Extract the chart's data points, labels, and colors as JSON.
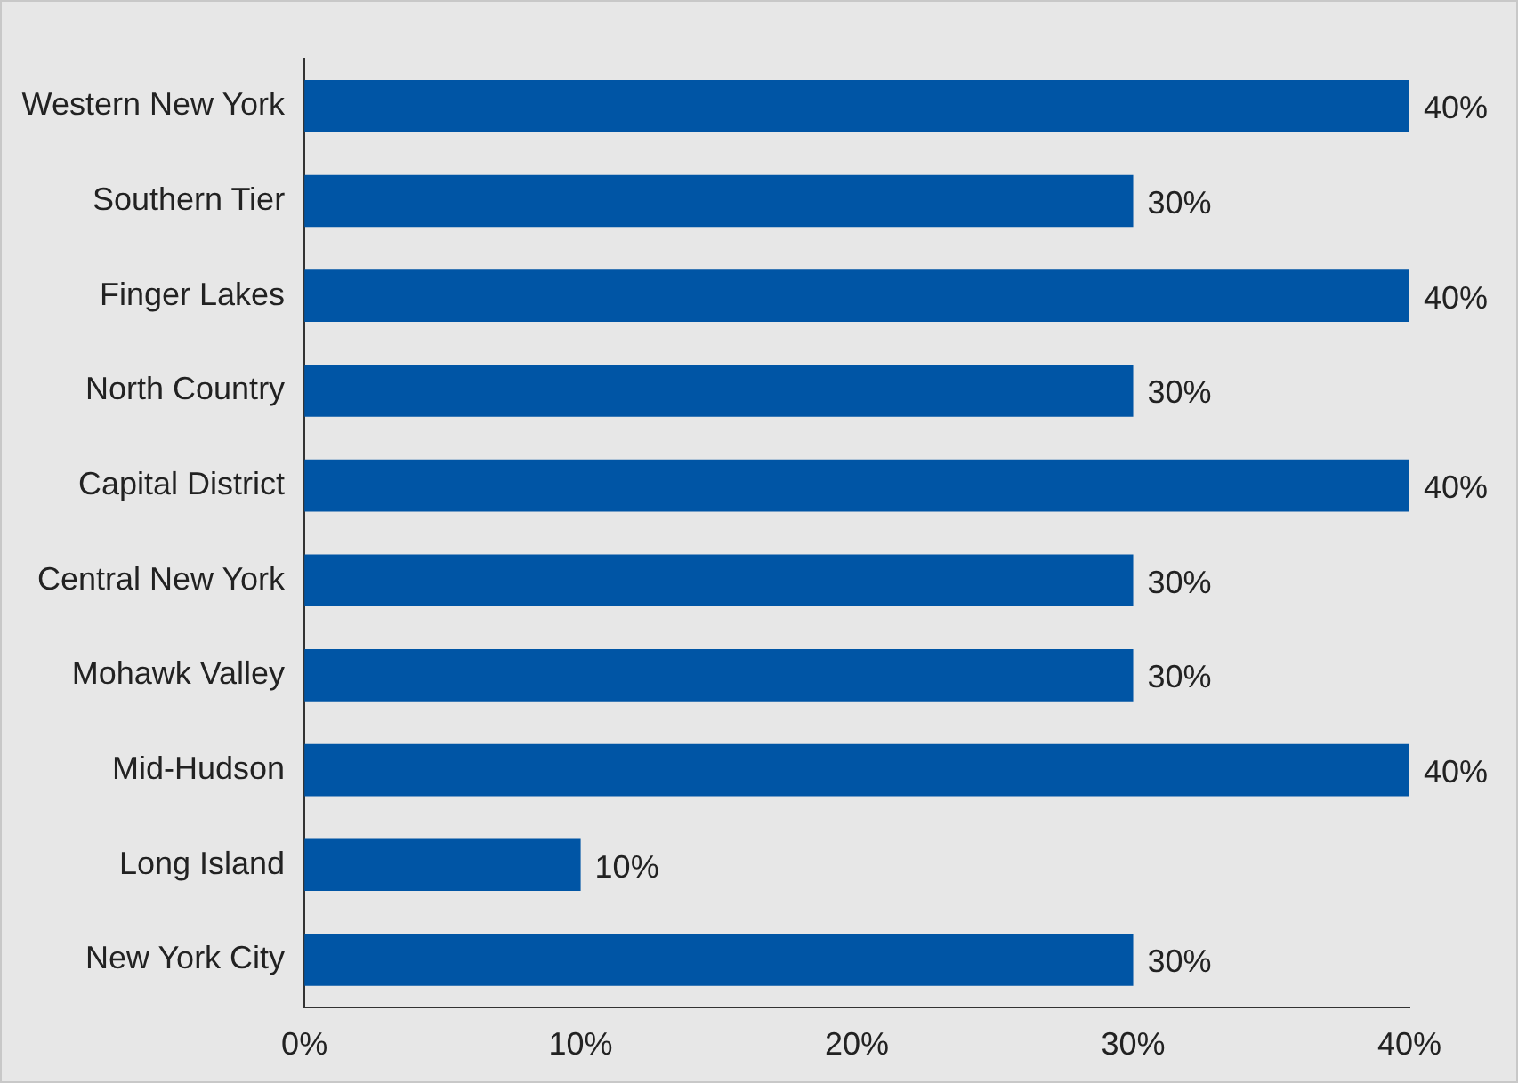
{
  "chart_data": {
    "type": "bar",
    "orientation": "horizontal",
    "categories": [
      "Western New York",
      "Southern Tier",
      "Finger Lakes",
      "North Country",
      "Capital District",
      "Central New York",
      "Mohawk Valley",
      "Mid-Hudson",
      "Long Island",
      "New York City"
    ],
    "values": [
      40,
      30,
      40,
      30,
      40,
      30,
      30,
      40,
      10,
      30
    ],
    "value_labels": [
      "40%",
      "30%",
      "40%",
      "30%",
      "40%",
      "30%",
      "30%",
      "40%",
      "10%",
      "30%"
    ],
    "color": "#0055a5",
    "xlim": [
      0,
      40
    ],
    "xticks": [
      {
        "value": 0,
        "label": "0%"
      },
      {
        "value": 10,
        "label": "10%"
      },
      {
        "value": 20,
        "label": "20%"
      },
      {
        "value": 30,
        "label": "30%"
      },
      {
        "value": 40,
        "label": "40%"
      }
    ],
    "grid": false,
    "legend": false
  }
}
